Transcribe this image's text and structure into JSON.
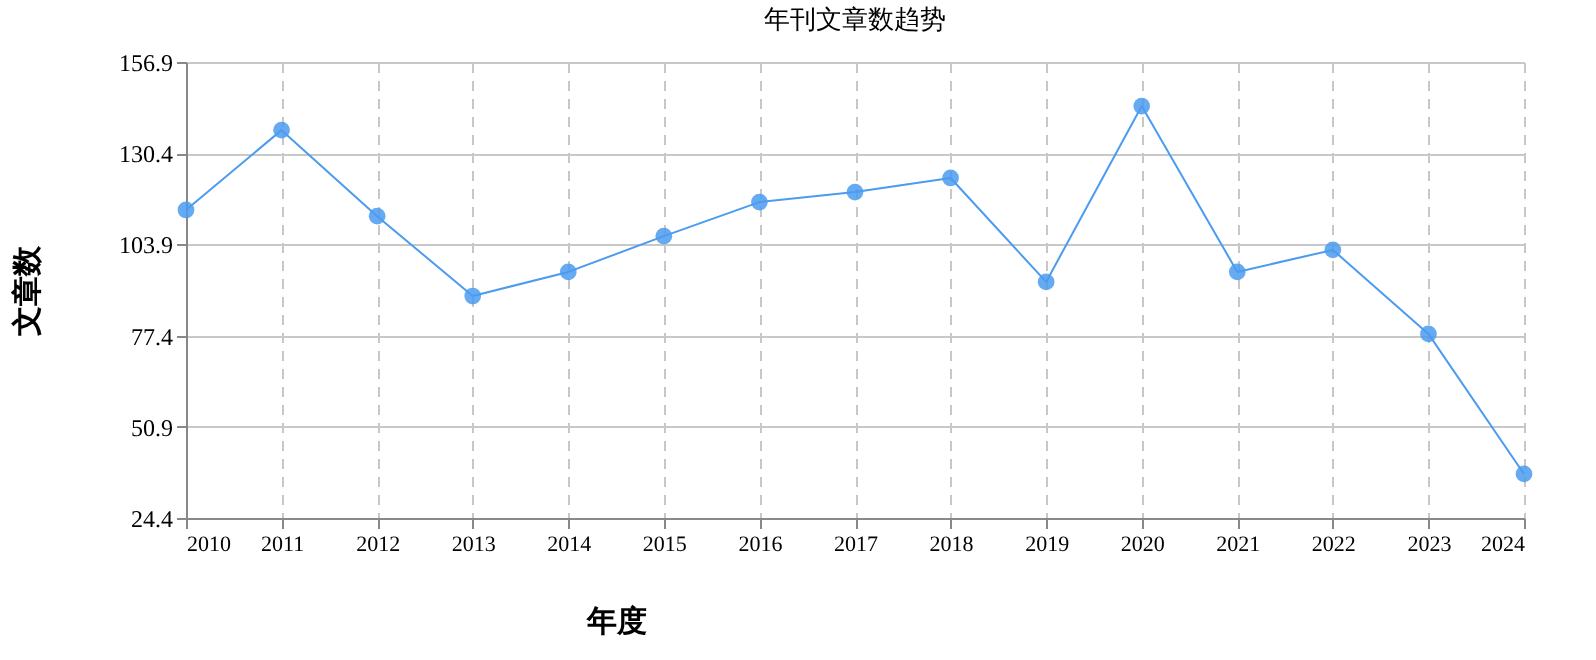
{
  "chart_data": {
    "type": "line",
    "title": "年刊文章数趋势",
    "xlabel": "年度",
    "ylabel": "文章数",
    "categories": [
      "2010",
      "2011",
      "2012",
      "2013",
      "2014",
      "2015",
      "2016",
      "2017",
      "2018",
      "2019",
      "2020",
      "2021",
      "2022",
      "2023",
      "2024"
    ],
    "series": [
      {
        "color": "#4b9bf0",
        "values": [
          113.9,
          137.1,
          112.1,
          88.9,
          95.9,
          106.3,
          116.2,
          119.1,
          123.2,
          93.0,
          144.1,
          95.9,
          102.3,
          77.9,
          37.2
        ]
      }
    ],
    "ylim": [
      24.4,
      156.9
    ],
    "yticks": [
      24.4,
      50.9,
      77.4,
      103.9,
      130.4,
      156.9
    ],
    "grid": true,
    "marker": "circle"
  }
}
